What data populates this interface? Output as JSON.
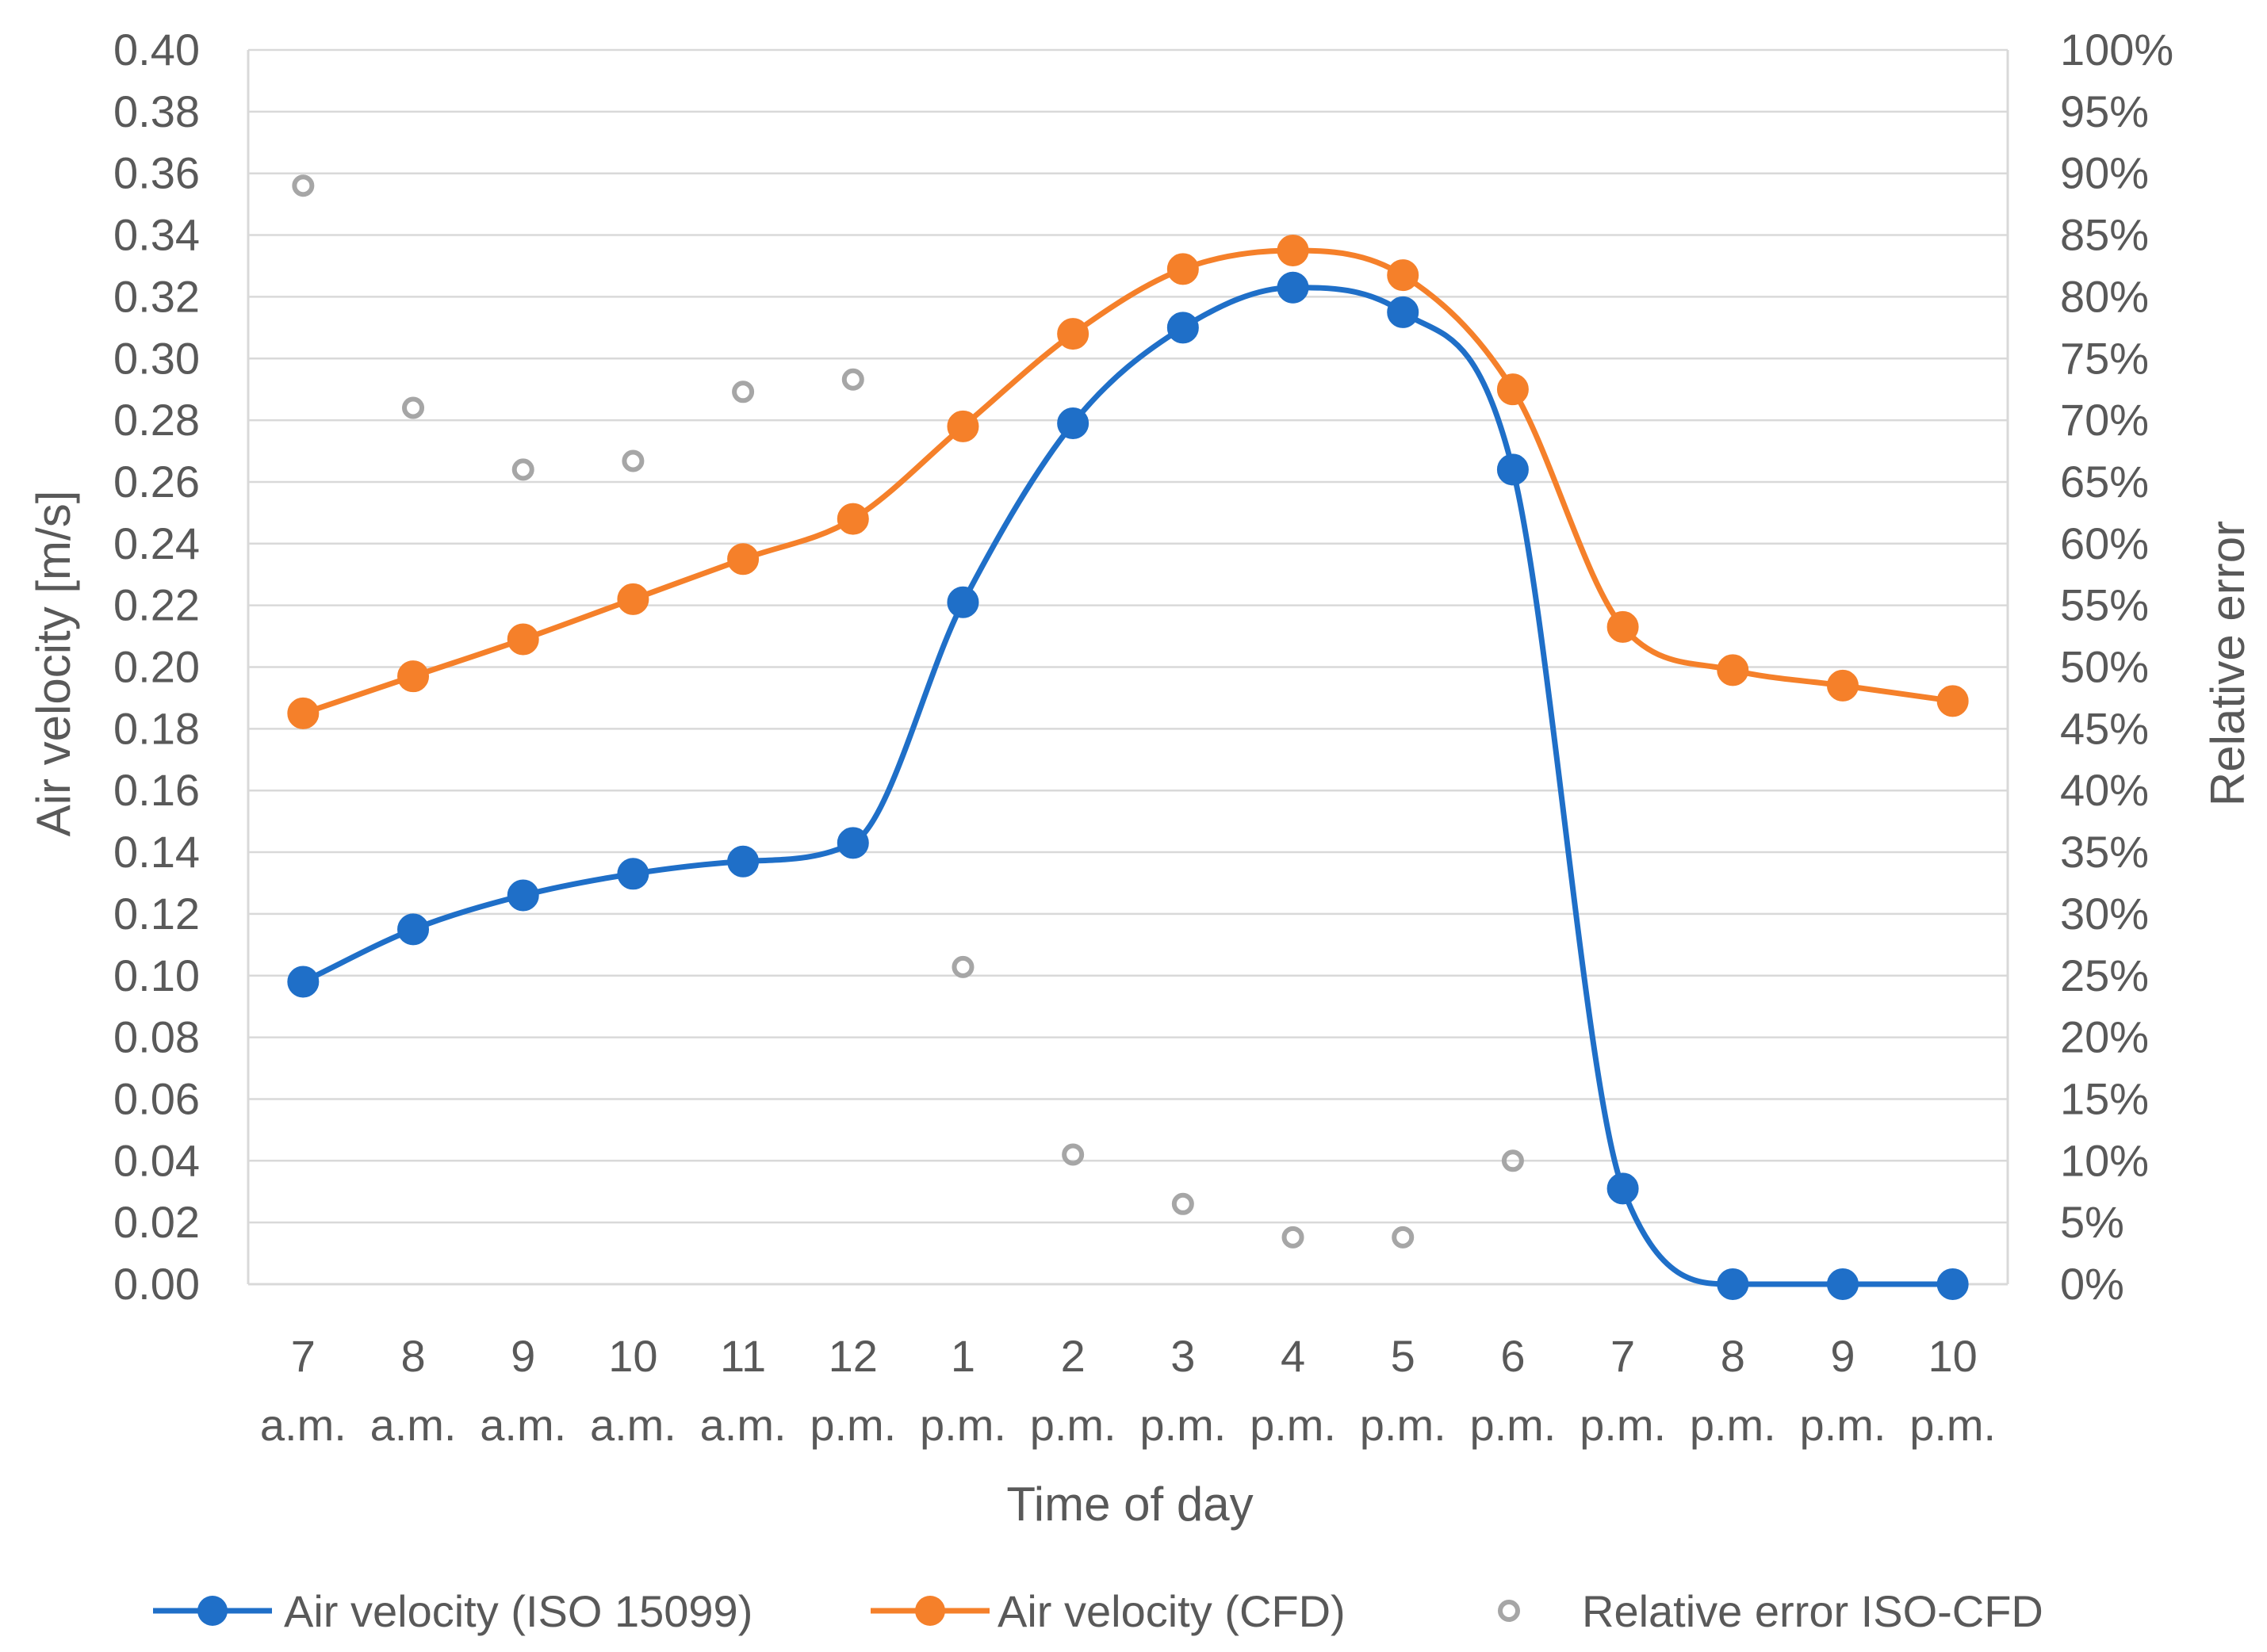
{
  "chart_data": {
    "type": "line",
    "title": "",
    "xlabel": "Time of day",
    "ylabel": "Air velocity [m/s]",
    "y2label": "Relative error",
    "ylim": [
      0,
      0.4
    ],
    "y2lim": [
      0,
      1.0
    ],
    "grid": true,
    "legend_position": "bottom",
    "y_ticks": [
      "0.00",
      "0.02",
      "0.04",
      "0.06",
      "0.08",
      "0.10",
      "0.12",
      "0.14",
      "0.16",
      "0.18",
      "0.20",
      "0.22",
      "0.24",
      "0.26",
      "0.28",
      "0.30",
      "0.32",
      "0.34",
      "0.36",
      "0.38",
      "0.40"
    ],
    "y2_ticks": [
      "0%",
      "5%",
      "10%",
      "15%",
      "20%",
      "25%",
      "30%",
      "35%",
      "40%",
      "45%",
      "50%",
      "55%",
      "60%",
      "65%",
      "70%",
      "75%",
      "80%",
      "85%",
      "90%",
      "95%",
      "100%"
    ],
    "categories": [
      {
        "hour": "7",
        "period": "a.m."
      },
      {
        "hour": "8",
        "period": "a.m."
      },
      {
        "hour": "9",
        "period": "a.m."
      },
      {
        "hour": "10",
        "period": "a.m."
      },
      {
        "hour": "11",
        "period": "a.m."
      },
      {
        "hour": "12",
        "period": "p.m."
      },
      {
        "hour": "1",
        "period": "p.m."
      },
      {
        "hour": "2",
        "period": "p.m."
      },
      {
        "hour": "3",
        "period": "p.m."
      },
      {
        "hour": "4",
        "period": "p.m."
      },
      {
        "hour": "5",
        "period": "p.m."
      },
      {
        "hour": "6",
        "period": "p.m."
      },
      {
        "hour": "7",
        "period": "p.m."
      },
      {
        "hour": "8",
        "period": "p.m."
      },
      {
        "hour": "9",
        "period": "p.m."
      },
      {
        "hour": "10",
        "period": "p.m."
      }
    ],
    "series": [
      {
        "name": "Air velocity (ISO 15099)",
        "axis": "left",
        "style": "line-marker",
        "color": "#1f6fc8",
        "values": [
          0.098,
          0.115,
          0.126,
          0.133,
          0.137,
          0.143,
          0.221,
          0.279,
          0.31,
          0.323,
          0.315,
          0.264,
          0.031,
          0.0,
          0.0,
          0.0
        ]
      },
      {
        "name": "Air velocity (CFD)",
        "axis": "left",
        "style": "line-marker",
        "color": "#f5802a",
        "values": [
          0.185,
          0.197,
          0.209,
          0.222,
          0.235,
          0.248,
          0.278,
          0.308,
          0.329,
          0.335,
          0.327,
          0.29,
          0.213,
          0.199,
          0.194,
          0.189
        ]
      },
      {
        "name": "Relative error ISO-CFD",
        "axis": "right",
        "style": "marker-only",
        "color": "#a6a6a6",
        "values": [
          0.89,
          0.71,
          0.66,
          0.667,
          0.723,
          0.733,
          0.257,
          0.105,
          0.065,
          0.038,
          0.038,
          0.1,
          null,
          null,
          null,
          null
        ]
      }
    ]
  }
}
